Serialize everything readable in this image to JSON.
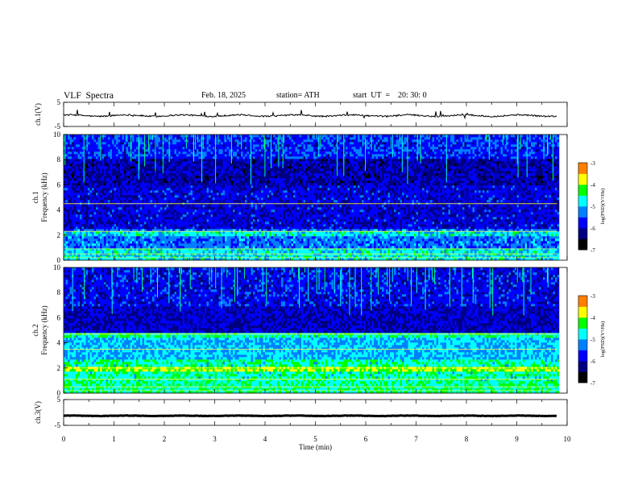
{
  "header": {
    "title": "VLF  Spectra",
    "date": "Feb. 18, 2025",
    "station": "station= ATH",
    "start": "start  UT  =    20: 30: 0"
  },
  "colors": {
    "colormap": [
      "#000000",
      "#000080",
      "#0000ff",
      "#0080ff",
      "#00ffff",
      "#00ff00",
      "#ffff00",
      "#ff8000",
      "#ff0000",
      "#ffffff"
    ]
  },
  "chart_data": [
    {
      "type": "line",
      "ylabel": "ch.1(V)",
      "ylim": [
        -5,
        5
      ],
      "yticks": [
        "5",
        "-5"
      ],
      "xlim": [
        0,
        10
      ],
      "description_values": {
        "baseline": -0.5,
        "noise_amplitude": 0.6
      }
    },
    {
      "type": "heatmap",
      "ylabel_top": "ch.1",
      "ylabel": "Frequency  (kHz)",
      "ylim": [
        0,
        10
      ],
      "yticks": [
        "0",
        "2",
        "4",
        "6",
        "8",
        "10"
      ],
      "xlim": [
        0,
        10
      ],
      "data_end_min": 9.8,
      "colorbar": {
        "label": "log(PSD)(V²/Hz)",
        "range": [
          -7,
          -3
        ],
        "ticks": [
          "-3",
          "-4",
          "-5",
          "-6",
          "-7"
        ]
      }
    },
    {
      "type": "heatmap",
      "ylabel_top": "ch.2",
      "ylabel": "Frequency  (kHz)",
      "ylim": [
        0,
        10
      ],
      "yticks": [
        "0",
        "2",
        "4",
        "6",
        "8",
        "10"
      ],
      "xlim": [
        0,
        10
      ],
      "data_end_min": 9.8,
      "colorbar": {
        "label": "log(PSD)(V²/Hz)",
        "range": [
          -7,
          -3
        ],
        "ticks": [
          "-3",
          "-4",
          "-5",
          "-6",
          "-7"
        ]
      }
    },
    {
      "type": "line",
      "ylabel": "ch.3(V)",
      "ylim": [
        -5,
        5
      ],
      "yticks": [
        "5",
        "-5"
      ],
      "xlim": [
        0,
        10
      ],
      "xlabel": "Time  (min)",
      "xticks": [
        "0",
        "1",
        "2",
        "3",
        "4",
        "5",
        "6",
        "7",
        "8",
        "9",
        "10"
      ],
      "description_values": {
        "baseline": -1.3,
        "noise_amplitude": 0.15
      }
    }
  ]
}
